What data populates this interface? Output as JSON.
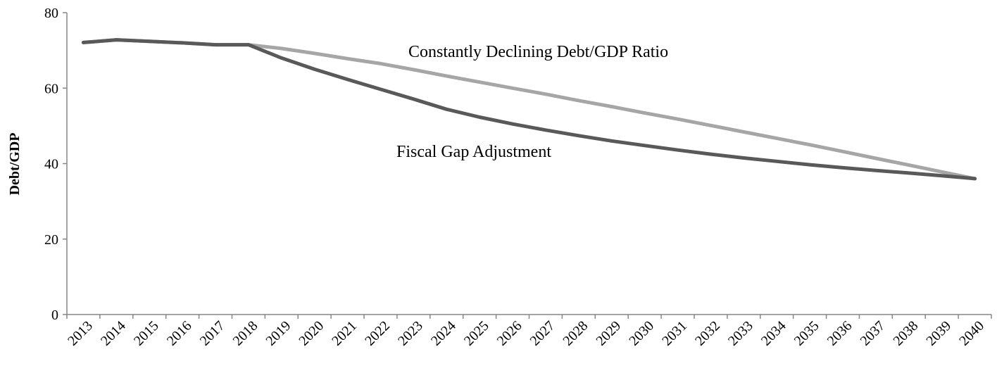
{
  "chart_data": {
    "type": "line",
    "title": "",
    "xlabel": "",
    "ylabel": "Debt/GDP",
    "ylim": [
      0,
      80
    ],
    "yticks": [
      "0",
      "20",
      "40",
      "60",
      "80"
    ],
    "grid": false,
    "categories": [
      "2013",
      "2014",
      "2015",
      "2016",
      "2017",
      "2018",
      "2019",
      "2020",
      "2021",
      "2022",
      "2023",
      "2024",
      "2025",
      "2026",
      "2027",
      "2028",
      "2029",
      "2030",
      "2031",
      "2032",
      "2033",
      "2034",
      "2035",
      "2036",
      "2037",
      "2038",
      "2039",
      "2040"
    ],
    "series": [
      {
        "name": "Constantly Declining Debt/GDP Ratio",
        "color": "#a6a6a6",
        "values": [
          72.1,
          72.8,
          72.4,
          72.0,
          71.5,
          71.5,
          70.5,
          69.2,
          67.8,
          66.5,
          64.9,
          63.2,
          61.6,
          60.0,
          58.4,
          56.7,
          55.1,
          53.4,
          51.8,
          50.1,
          48.4,
          46.7,
          45.0,
          43.2,
          41.4,
          39.6,
          37.8,
          36.0
        ]
      },
      {
        "name": "Fiscal Gap Adjustment",
        "color": "#595959",
        "values": [
          72.1,
          72.8,
          72.4,
          72.0,
          71.5,
          71.5,
          68.0,
          65.0,
          62.3,
          59.7,
          57.1,
          54.4,
          52.3,
          50.5,
          48.9,
          47.4,
          46.0,
          44.8,
          43.6,
          42.5,
          41.5,
          40.6,
          39.7,
          38.9,
          38.2,
          37.5,
          36.8,
          36.0
        ]
      }
    ]
  }
}
